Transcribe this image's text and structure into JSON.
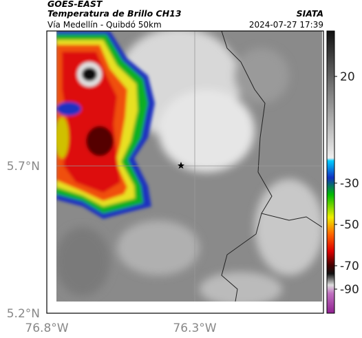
{
  "header": {
    "source": "GOES-EAST",
    "title": "Temperatura de Brillo CH13",
    "subtitle": "Vía Medellín - Quibdó 50km",
    "organization": "SIATA",
    "timestamp": "2024-07-27 17:39"
  },
  "axes": {
    "y_labels": [
      "5.7°N",
      "5.2°N"
    ],
    "x_labels": [
      "76.8°W",
      "76.3°W"
    ]
  },
  "colorbar": {
    "labels": [
      "20",
      "-30",
      "-50",
      "-70",
      "-90"
    ]
  }
}
